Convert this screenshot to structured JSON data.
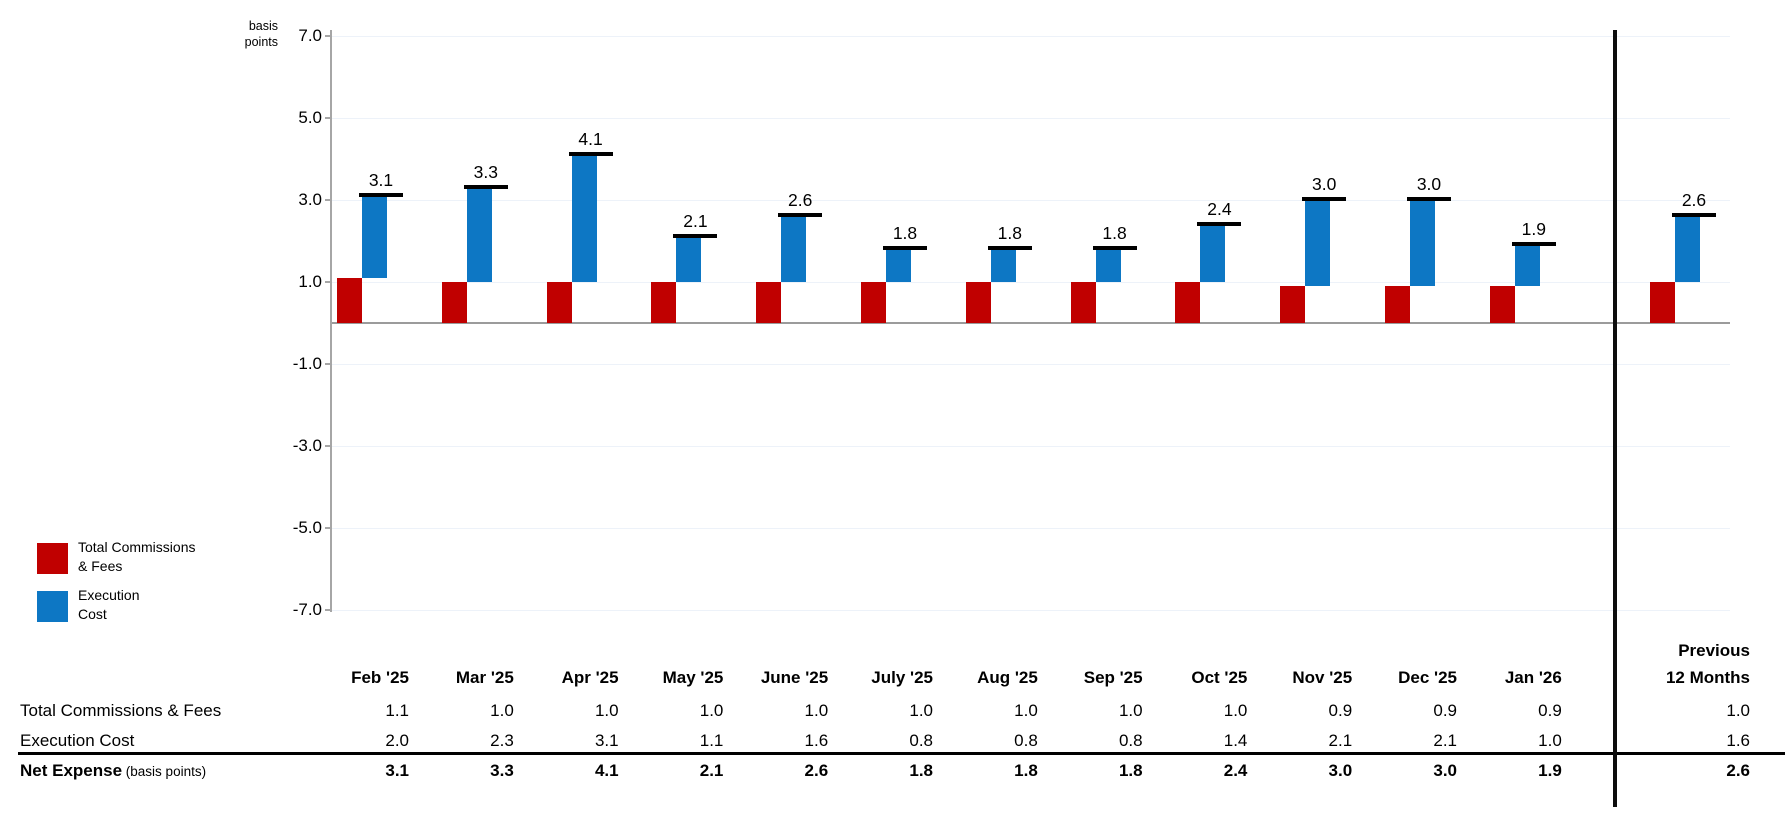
{
  "chart_data": {
    "type": "bar",
    "stacked": true,
    "title": "",
    "unit_label_lines": [
      "basis",
      "points"
    ],
    "categories": [
      "Feb '25",
      "Mar '25",
      "Apr '25",
      "May '25",
      "June '25",
      "July '25",
      "Aug '25",
      "Sep '25",
      "Oct '25",
      "Nov '25",
      "Dec '25",
      "Jan '26",
      "Previous 12 Months"
    ],
    "series": [
      {
        "name": "Total Commissions & Fees",
        "color": "#c00000",
        "values": [
          1.1,
          1.0,
          1.0,
          1.0,
          1.0,
          1.0,
          1.0,
          1.0,
          1.0,
          0.9,
          0.9,
          0.9,
          1.0
        ]
      },
      {
        "name": "Execution Cost",
        "color": "#0d77c4",
        "values": [
          2.0,
          2.3,
          3.1,
          1.1,
          1.6,
          0.8,
          0.8,
          0.8,
          1.4,
          2.1,
          2.1,
          1.0,
          1.6
        ]
      }
    ],
    "totals": [
      3.1,
      3.3,
      4.1,
      2.1,
      2.6,
      1.8,
      1.8,
      1.8,
      2.4,
      3.0,
      3.0,
      1.9,
      2.6
    ],
    "ylim": [
      -7.0,
      7.0
    ],
    "yticks": [
      7.0,
      5.0,
      3.0,
      1.0,
      -1.0,
      -3.0,
      -5.0,
      -7.0
    ],
    "grid": true,
    "legend_position": "bottom-left",
    "total_cap_color": "#000000",
    "gridline_color": "#edf2f9",
    "axis_color": "#a6a6a6"
  },
  "legend": {
    "items": [
      {
        "line1": "Total Commissions",
        "line2": "& Fees",
        "color": "#c00000"
      },
      {
        "line1": "Execution",
        "line2": "Cost",
        "color": "#0d77c4"
      }
    ]
  },
  "table": {
    "month_columns": [
      "Feb '25",
      "Mar '25",
      "Apr '25",
      "May '25",
      "June '25",
      "July '25",
      "Aug '25",
      "Sep '25",
      "Oct '25",
      "Nov '25",
      "Dec '25",
      "Jan '26"
    ],
    "last_column_lines": [
      "Previous",
      "12 Months"
    ],
    "rows": [
      {
        "label": "Total Commissions & Fees",
        "suffix": "",
        "bold": false,
        "values": [
          1.1,
          1.0,
          1.0,
          1.0,
          1.0,
          1.0,
          1.0,
          1.0,
          1.0,
          0.9,
          0.9,
          0.9,
          1.0
        ]
      },
      {
        "label": "Execution Cost",
        "suffix": "",
        "bold": false,
        "values": [
          2.0,
          2.3,
          3.1,
          1.1,
          1.6,
          0.8,
          0.8,
          0.8,
          1.4,
          2.1,
          2.1,
          1.0,
          1.6
        ]
      },
      {
        "label": "Net Expense",
        "suffix": " (basis points)",
        "bold": true,
        "values": [
          3.1,
          3.3,
          4.1,
          2.1,
          2.6,
          1.8,
          1.8,
          1.8,
          2.4,
          3.0,
          3.0,
          1.9,
          2.6
        ]
      }
    ]
  }
}
